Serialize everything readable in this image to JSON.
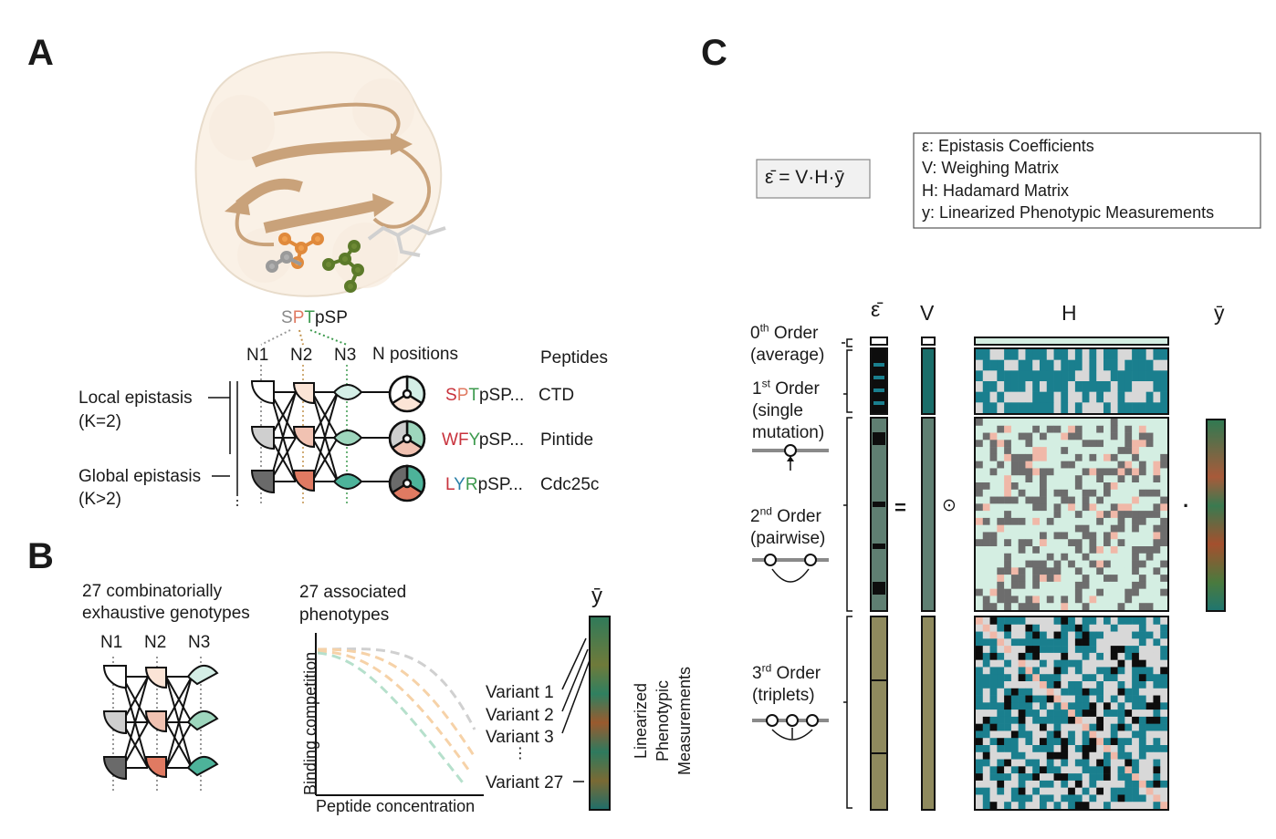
{
  "panels": {
    "a": "A",
    "b": "B",
    "c": "C"
  },
  "panel_a": {
    "peptide_top": {
      "s": "S",
      "p": "P",
      "t": "T",
      "rest": "pSP"
    },
    "position_labels": [
      "N1",
      "N2",
      "N3"
    ],
    "n_positions_label": "N positions",
    "peptides_header": "Peptides",
    "local_epistasis": "Local epistasis",
    "local_k": "(K=2)",
    "global_epistasis": "Global epistasis",
    "global_k": "(K>2)",
    "rows": [
      {
        "a1": "S",
        "a2": "P",
        "a3": "T",
        "suffix": "pSP...",
        "name": "CTD"
      },
      {
        "a1": "W",
        "a2": "F",
        "a3": "Y",
        "suffix": "pSP...",
        "name": "Pintide"
      },
      {
        "a1": "L",
        "a2": "Y",
        "a3": "R",
        "suffix": "pSP...",
        "name": "Cdc25c"
      }
    ]
  },
  "panel_b": {
    "genotypes_line1": "27 combinatorially",
    "genotypes_line2": "exhaustive genotypes",
    "position_labels": [
      "N1",
      "N2",
      "N3"
    ],
    "phenotypes_line1": "27 associated",
    "phenotypes_line2": "phenotypes",
    "ylabel": "Binding competition",
    "xlabel": "Peptide concentration",
    "variants": [
      "Variant 1",
      "Variant 2",
      "Variant 3",
      "⋮",
      "Variant 27"
    ],
    "ybar_label": "ȳ",
    "rotated_line1": "Linearized",
    "rotated_line2": "Phenotypic",
    "rotated_line3": "Measurements"
  },
  "panel_c": {
    "equation": "ε̄ = V·H·ȳ",
    "legend": [
      "ε: Epistasis Coefficients",
      "V: Weighing Matrix",
      "H: Hadamard Matrix",
      "y: Linearized Phenotypic Measurements"
    ],
    "col_eps": "ε̄",
    "col_v": "V",
    "col_h": "H",
    "col_y": "ȳ",
    "equals": "=",
    "odot": "⊙",
    "dot": "·",
    "orders": [
      {
        "sup": "th",
        "num": "0",
        "word": " Order",
        "line2": "(average)",
        "line3": ""
      },
      {
        "sup": "st",
        "num": "1",
        "word": " Order",
        "line2": "(single",
        "line3": "mutation)"
      },
      {
        "sup": "nd",
        "num": "2",
        "word": " Order",
        "line2": "(pairwise)",
        "line3": ""
      },
      {
        "sup": "rd",
        "num": "3",
        "word": " Order",
        "line2": "(triplets)",
        "line3": ""
      }
    ]
  },
  "colors": {
    "protein": "#d9b48a",
    "teal": "#1a7f8e",
    "mint": "#d4eee2",
    "salmon": "#f0b8a8",
    "darkgrey": "#6d6d6d",
    "olive": "#8f8a5e",
    "slate": "#5f7f72"
  }
}
